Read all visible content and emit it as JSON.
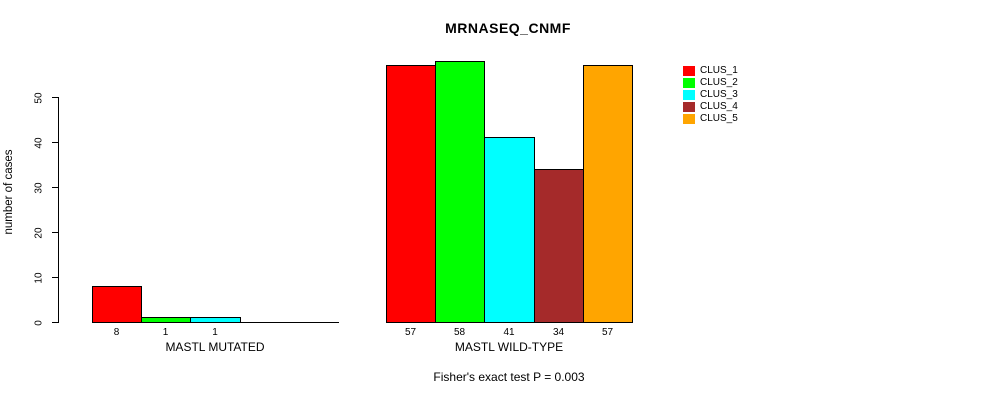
{
  "title": "MRNASEQ_CNMF",
  "footnote": "Fisher's exact test P = 0.003",
  "chart_data": {
    "type": "bar",
    "title": "MRNASEQ_CNMF",
    "xlabel": "",
    "ylabel": "number of cases",
    "ylim": [
      0,
      50
    ],
    "yticks": [
      0,
      10,
      20,
      30,
      40,
      50
    ],
    "grid": false,
    "legend_position": "right",
    "categories": [
      "MASTL MUTATED",
      "MASTL WILD-TYPE"
    ],
    "series": [
      {
        "name": "CLUS_1",
        "color": "#FF0000",
        "values": [
          8,
          57
        ]
      },
      {
        "name": "CLUS_2",
        "color": "#00FF00",
        "values": [
          1,
          58
        ]
      },
      {
        "name": "CLUS_3",
        "color": "#00FFFF",
        "values": [
          1,
          41
        ]
      },
      {
        "name": "CLUS_4",
        "color": "#A52A2A",
        "values": [
          0,
          34
        ]
      },
      {
        "name": "CLUS_5",
        "color": "#FFA500",
        "values": [
          0,
          57
        ]
      }
    ],
    "bar_value_labels": [
      [
        "8",
        "1",
        "1",
        "",
        ""
      ],
      [
        "57",
        "58",
        "41",
        "34",
        "57"
      ]
    ],
    "annotation": "Fisher's exact test P = 0.003"
  }
}
